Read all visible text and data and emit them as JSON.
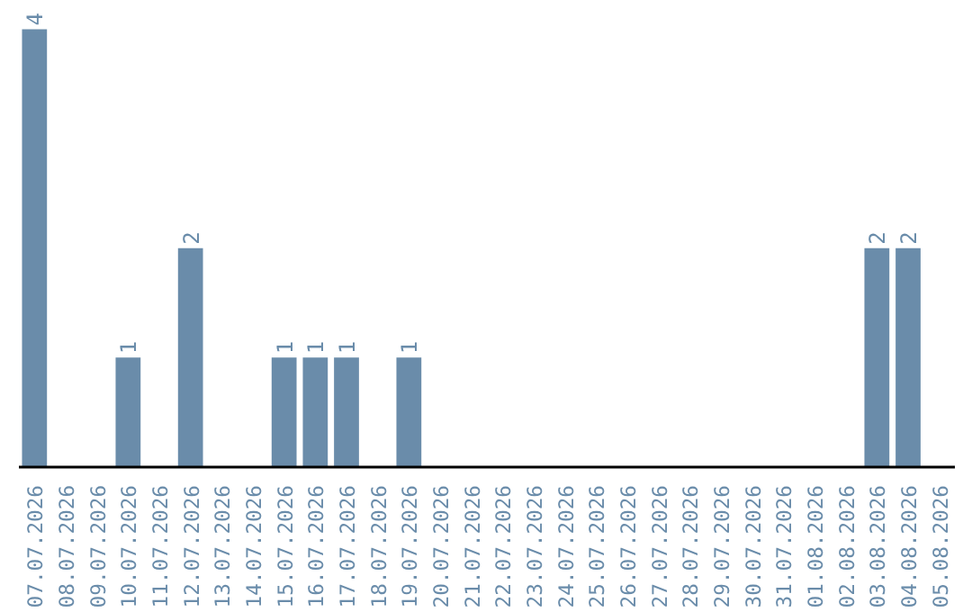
{
  "chart_data": {
    "type": "bar",
    "categories": [
      "07.07.2026",
      "08.07.2026",
      "09.07.2026",
      "10.07.2026",
      "11.07.2026",
      "12.07.2026",
      "13.07.2026",
      "14.07.2026",
      "15.07.2026",
      "16.07.2026",
      "17.07.2026",
      "18.07.2026",
      "19.07.2026",
      "20.07.2026",
      "21.07.2026",
      "22.07.2026",
      "23.07.2026",
      "24.07.2026",
      "25.07.2026",
      "26.07.2026",
      "27.07.2026",
      "28.07.2026",
      "29.07.2026",
      "30.07.2026",
      "31.07.2026",
      "01.08.2026",
      "02.08.2026",
      "03.08.2026",
      "04.08.2026",
      "05.08.2026"
    ],
    "values": [
      4,
      0,
      0,
      1,
      0,
      2,
      0,
      0,
      1,
      1,
      1,
      0,
      1,
      0,
      0,
      0,
      0,
      0,
      0,
      0,
      0,
      0,
      0,
      0,
      0,
      0,
      0,
      2,
      2,
      0
    ],
    "value_labels": [
      "4",
      null,
      null,
      "1",
      null,
      "2",
      null,
      null,
      "1",
      "1",
      "1",
      null,
      "1",
      null,
      null,
      null,
      null,
      null,
      null,
      null,
      null,
      null,
      null,
      null,
      null,
      null,
      null,
      "2",
      "2",
      null
    ],
    "color": "#6a8caa",
    "ylim": [
      0,
      4
    ],
    "tick_labels": "x",
    "grid": false
  }
}
